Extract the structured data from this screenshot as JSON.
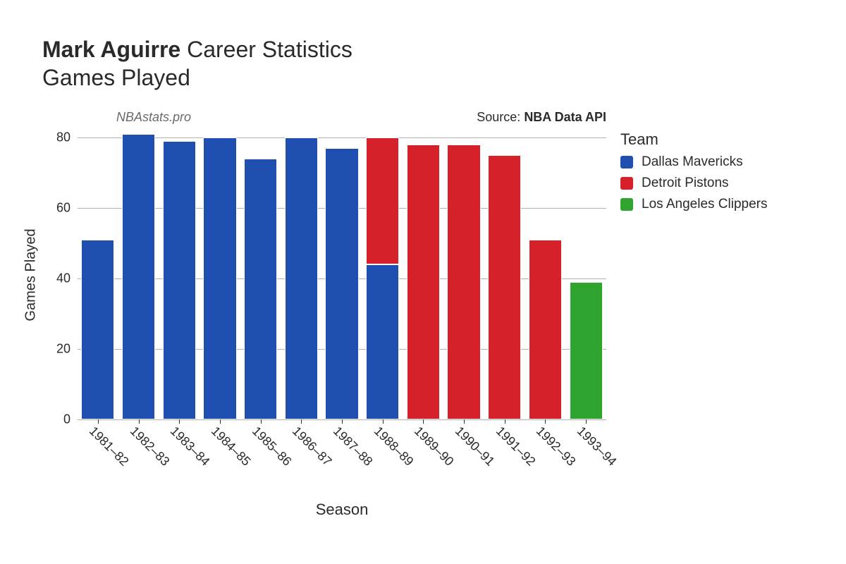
{
  "title": {
    "player_name": "Mark Aguirre",
    "suffix": "Career Statistics",
    "subtitle": "Games Played"
  },
  "annotations": {
    "site": "NBAstats.pro",
    "source_prefix": "Source: ",
    "source_name": "NBA Data API"
  },
  "axes": {
    "x_title": "Season",
    "y_title": "Games Played"
  },
  "chart": {
    "type": "stacked-bar",
    "ylim": [
      0,
      82
    ],
    "ytick_step": 20,
    "yticks": [
      0,
      20,
      40,
      60,
      80
    ],
    "bar_width_ratio": 0.82,
    "background_color": "#ffffff",
    "grid_color": "#b0b0b0",
    "tick_fontsize": 18,
    "axis_title_fontsize": 21,
    "title_fontsize": 32,
    "legend_title_fontsize": 22,
    "legend_item_fontsize": 19,
    "categories": [
      "1981–82",
      "1982–83",
      "1983–84",
      "1984–85",
      "1985–86",
      "1986–87",
      "1987–88",
      "1988–89",
      "1989–90",
      "1990–91",
      "1991–92",
      "1992–93",
      "1993–94"
    ],
    "stacks": [
      [
        {
          "team": "Dallas Mavericks",
          "value": 51
        }
      ],
      [
        {
          "team": "Dallas Mavericks",
          "value": 81
        }
      ],
      [
        {
          "team": "Dallas Mavericks",
          "value": 79
        }
      ],
      [
        {
          "team": "Dallas Mavericks",
          "value": 80
        }
      ],
      [
        {
          "team": "Dallas Mavericks",
          "value": 74
        }
      ],
      [
        {
          "team": "Dallas Mavericks",
          "value": 80
        }
      ],
      [
        {
          "team": "Dallas Mavericks",
          "value": 77
        }
      ],
      [
        {
          "team": "Dallas Mavericks",
          "value": 44
        },
        {
          "team": "Detroit Pistons",
          "value": 36
        }
      ],
      [
        {
          "team": "Detroit Pistons",
          "value": 78
        }
      ],
      [
        {
          "team": "Detroit Pistons",
          "value": 78
        }
      ],
      [
        {
          "team": "Detroit Pistons",
          "value": 75
        }
      ],
      [
        {
          "team": "Detroit Pistons",
          "value": 51
        }
      ],
      [
        {
          "team": "Los Angeles Clippers",
          "value": 39
        }
      ]
    ]
  },
  "teams": {
    "order": [
      "Dallas Mavericks",
      "Detroit Pistons",
      "Los Angeles Clippers"
    ],
    "colors": {
      "Dallas Mavericks": "#1f4fb0",
      "Detroit Pistons": "#d6202a",
      "Los Angeles Clippers": "#2fa52f"
    }
  },
  "legend": {
    "title": "Team"
  }
}
